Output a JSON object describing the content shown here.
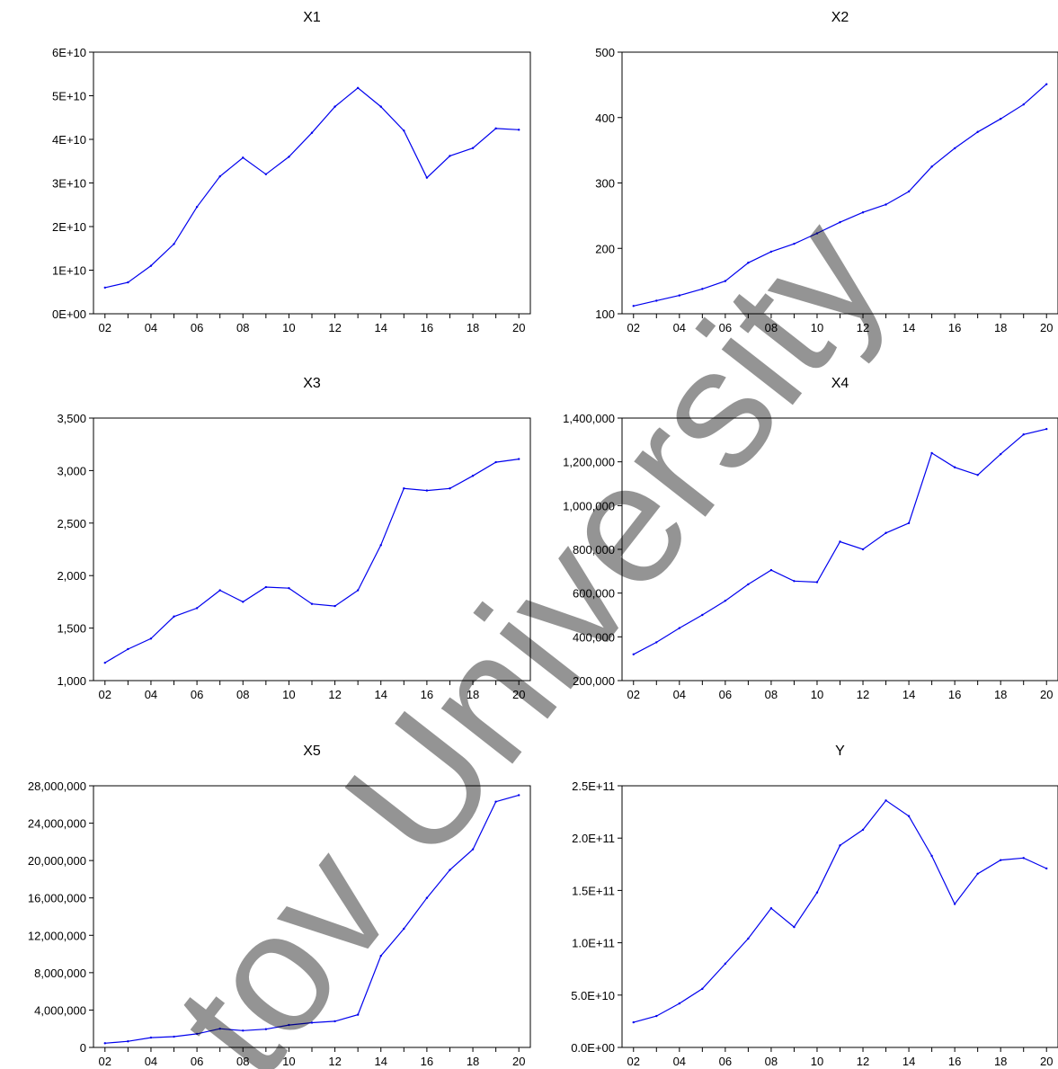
{
  "watermark": "tov University",
  "chart_data": [
    {
      "type": "line",
      "title": "X1",
      "x": [
        2002,
        2003,
        2004,
        2005,
        2006,
        2007,
        2008,
        2009,
        2010,
        2011,
        2012,
        2013,
        2014,
        2015,
        2016,
        2017,
        2018,
        2019,
        2020
      ],
      "x_tick_labels": [
        "02",
        "04",
        "06",
        "08",
        "10",
        "12",
        "14",
        "16",
        "18",
        "20"
      ],
      "y_tick_labels": [
        "0E+00",
        "1E+10",
        "2E+10",
        "3E+10",
        "4E+10",
        "5E+10",
        "6E+10"
      ],
      "ylim": [
        0,
        60000000000
      ],
      "series": [
        {
          "values": [
            6000000000.0,
            7200000000.0,
            11000000000.0,
            16000000000.0,
            24500000000.0,
            31500000000.0,
            35800000000.0,
            32000000000.0,
            36000000000.0,
            41500000000.0,
            47500000000.0,
            51800000000.0,
            47500000000.0,
            42000000000.0,
            31200000000.0,
            36200000000.0,
            38000000000.0,
            42500000000.0,
            42200000000.0
          ]
        }
      ],
      "color": "#0000ee"
    },
    {
      "type": "line",
      "title": "X2",
      "x": [
        2002,
        2003,
        2004,
        2005,
        2006,
        2007,
        2008,
        2009,
        2010,
        2011,
        2012,
        2013,
        2014,
        2015,
        2016,
        2017,
        2018,
        2019,
        2020
      ],
      "x_tick_labels": [
        "02",
        "04",
        "06",
        "08",
        "10",
        "12",
        "14",
        "16",
        "18",
        "20"
      ],
      "y_tick_labels": [
        "100",
        "200",
        "300",
        "400",
        "500"
      ],
      "ylim": [
        100,
        500
      ],
      "series": [
        {
          "values": [
            112,
            120,
            128,
            138,
            150,
            178,
            195,
            207,
            223,
            240,
            255,
            267,
            287,
            325,
            353,
            378,
            398,
            420,
            451
          ]
        }
      ],
      "color": "#0000ee"
    },
    {
      "type": "line",
      "title": "X3",
      "x": [
        2002,
        2003,
        2004,
        2005,
        2006,
        2007,
        2008,
        2009,
        2010,
        2011,
        2012,
        2013,
        2014,
        2015,
        2016,
        2017,
        2018,
        2019,
        2020
      ],
      "x_tick_labels": [
        "02",
        "04",
        "06",
        "08",
        "10",
        "12",
        "14",
        "16",
        "18",
        "20"
      ],
      "y_tick_labels": [
        "1,000",
        "1,500",
        "2,000",
        "2,500",
        "3,000",
        "3,500"
      ],
      "ylim": [
        1000,
        3500
      ],
      "series": [
        {
          "values": [
            1170,
            1300,
            1400,
            1610,
            1690,
            1860,
            1750,
            1890,
            1880,
            1730,
            1710,
            1860,
            2290,
            2830,
            2810,
            2830,
            2950,
            3080,
            3110
          ]
        }
      ],
      "color": "#0000ee"
    },
    {
      "type": "line",
      "title": "X4",
      "x": [
        2002,
        2003,
        2004,
        2005,
        2006,
        2007,
        2008,
        2009,
        2010,
        2011,
        2012,
        2013,
        2014,
        2015,
        2016,
        2017,
        2018,
        2019,
        2020
      ],
      "x_tick_labels": [
        "02",
        "04",
        "06",
        "08",
        "10",
        "12",
        "14",
        "16",
        "18",
        "20"
      ],
      "y_tick_labels": [
        "200,000",
        "400,000",
        "600,000",
        "800,000",
        "1,000,000",
        "1,200,000",
        "1,400,000"
      ],
      "ylim": [
        200000,
        1400000
      ],
      "series": [
        {
          "values": [
            320000,
            375000,
            440000,
            500000,
            565000,
            640000,
            705000,
            655000,
            650000,
            835000,
            800000,
            875000,
            920000,
            1240000,
            1175000,
            1140000,
            1235000,
            1325000,
            1350000
          ]
        }
      ],
      "color": "#0000ee"
    },
    {
      "type": "line",
      "title": "X5",
      "x": [
        2002,
        2003,
        2004,
        2005,
        2006,
        2007,
        2008,
        2009,
        2010,
        2011,
        2012,
        2013,
        2014,
        2015,
        2016,
        2017,
        2018,
        2019,
        2020
      ],
      "x_tick_labels": [
        "02",
        "04",
        "06",
        "08",
        "10",
        "12",
        "14",
        "16",
        "18",
        "20"
      ],
      "y_tick_labels": [
        "0",
        "4,000,000",
        "8,000,000",
        "12,000,000",
        "16,000,000",
        "20,000,000",
        "24,000,000",
        "28,000,000"
      ],
      "ylim": [
        0,
        28000000
      ],
      "series": [
        {
          "values": [
            450000,
            650000,
            1050000,
            1150000,
            1450000,
            2000000,
            1800000,
            1950000,
            2400000,
            2650000,
            2800000,
            3500000,
            9800000,
            12700000,
            16000000,
            19000000,
            21200000,
            26300000,
            27000000
          ]
        }
      ],
      "color": "#0000ee"
    },
    {
      "type": "line",
      "title": "Y",
      "x": [
        2002,
        2003,
        2004,
        2005,
        2006,
        2007,
        2008,
        2009,
        2010,
        2011,
        2012,
        2013,
        2014,
        2015,
        2016,
        2017,
        2018,
        2019,
        2020
      ],
      "x_tick_labels": [
        "02",
        "04",
        "06",
        "08",
        "10",
        "12",
        "14",
        "16",
        "18",
        "20"
      ],
      "y_tick_labels": [
        "0.0E+00",
        "5.0E+10",
        "1.0E+11",
        "1.5E+11",
        "2.0E+11",
        "2.5E+11"
      ],
      "ylim": [
        0,
        250000000000
      ],
      "series": [
        {
          "values": [
            24000000000.0,
            30000000000.0,
            42000000000.0,
            56000000000.0,
            80000000000.0,
            104000000000.0,
            133000000000.0,
            115000000000.0,
            148000000000.0,
            193000000000.0,
            208000000000.0,
            236000000000.0,
            221000000000.0,
            183000000000.0,
            137000000000.0,
            166000000000.0,
            179000000000.0,
            181000000000.0,
            171000000000.0
          ]
        }
      ],
      "color": "#0000ee"
    }
  ]
}
